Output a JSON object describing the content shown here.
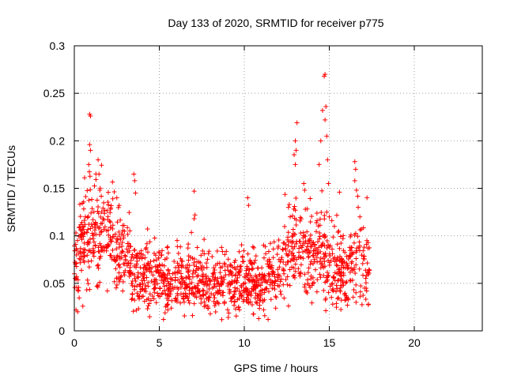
{
  "chart_data": {
    "type": "scatter",
    "title": "Day 133 of 2020, SRMTID for receiver p775",
    "xlabel": "GPS time / hours",
    "ylabel": "SRMTID / TECUs",
    "xlim": [
      0,
      24
    ],
    "ylim": [
      0,
      0.3
    ],
    "grid": true,
    "marker": "+",
    "color": "#ff0000",
    "x_ticks": [
      {
        "value": 0,
        "label": "0"
      },
      {
        "value": 5,
        "label": "5"
      },
      {
        "value": 10,
        "label": "10"
      },
      {
        "value": 15,
        "label": "15"
      },
      {
        "value": 20,
        "label": "20"
      }
    ],
    "y_ticks": [
      {
        "value": 0,
        "label": "0"
      },
      {
        "value": 0.05,
        "label": "0.05"
      },
      {
        "value": 0.1,
        "label": "0.1"
      },
      {
        "value": 0.15,
        "label": "0.15"
      },
      {
        "value": 0.2,
        "label": "0.2"
      },
      {
        "value": 0.25,
        "label": "0.25"
      },
      {
        "value": 0.3,
        "label": "0.3"
      }
    ],
    "data_range": {
      "x_start": 0.0,
      "x_end": 17.4
    },
    "envelope": [
      [
        0.0,
        0.06,
        0.025
      ],
      [
        0.5,
        0.095,
        0.03
      ],
      [
        1.0,
        0.1,
        0.03
      ],
      [
        1.5,
        0.11,
        0.032
      ],
      [
        2.0,
        0.1,
        0.03
      ],
      [
        2.5,
        0.085,
        0.028
      ],
      [
        3.0,
        0.075,
        0.026
      ],
      [
        3.5,
        0.065,
        0.024
      ],
      [
        4.0,
        0.058,
        0.022
      ],
      [
        5.0,
        0.052,
        0.02
      ],
      [
        6.0,
        0.05,
        0.019
      ],
      [
        7.0,
        0.052,
        0.02
      ],
      [
        8.0,
        0.05,
        0.019
      ],
      [
        9.0,
        0.048,
        0.019
      ],
      [
        10.0,
        0.05,
        0.02
      ],
      [
        11.0,
        0.045,
        0.018
      ],
      [
        12.0,
        0.065,
        0.024
      ],
      [
        12.5,
        0.085,
        0.028
      ],
      [
        13.0,
        0.09,
        0.03
      ],
      [
        13.5,
        0.08,
        0.028
      ],
      [
        14.0,
        0.075,
        0.026
      ],
      [
        14.5,
        0.09,
        0.03
      ],
      [
        15.0,
        0.07,
        0.026
      ],
      [
        15.5,
        0.055,
        0.022
      ],
      [
        16.0,
        0.06,
        0.022
      ],
      [
        16.5,
        0.07,
        0.026
      ],
      [
        17.0,
        0.068,
        0.024
      ],
      [
        17.4,
        0.065,
        0.022
      ]
    ],
    "highlights": [
      {
        "x": 0.9,
        "y": 0.228
      },
      {
        "x": 0.95,
        "y": 0.226
      },
      {
        "x": 0.9,
        "y": 0.196
      },
      {
        "x": 0.95,
        "y": 0.19
      },
      {
        "x": 0.85,
        "y": 0.175
      },
      {
        "x": 1.4,
        "y": 0.18
      },
      {
        "x": 1.45,
        "y": 0.165
      },
      {
        "x": 1.5,
        "y": 0.148
      },
      {
        "x": 2.5,
        "y": 0.14
      },
      {
        "x": 3.5,
        "y": 0.165
      },
      {
        "x": 3.55,
        "y": 0.158
      },
      {
        "x": 3.6,
        "y": 0.145
      },
      {
        "x": 7.05,
        "y": 0.147
      },
      {
        "x": 7.1,
        "y": 0.122
      },
      {
        "x": 7.05,
        "y": 0.118
      },
      {
        "x": 10.2,
        "y": 0.14
      },
      {
        "x": 10.25,
        "y": 0.132
      },
      {
        "x": 12.6,
        "y": 0.13
      },
      {
        "x": 12.7,
        "y": 0.12
      },
      {
        "x": 13.0,
        "y": 0.175
      },
      {
        "x": 13.05,
        "y": 0.19
      },
      {
        "x": 13.1,
        "y": 0.219
      },
      {
        "x": 13.0,
        "y": 0.2
      },
      {
        "x": 13.5,
        "y": 0.155
      },
      {
        "x": 13.55,
        "y": 0.148
      },
      {
        "x": 14.4,
        "y": 0.175
      },
      {
        "x": 14.5,
        "y": 0.2
      },
      {
        "x": 14.6,
        "y": 0.232
      },
      {
        "x": 14.7,
        "y": 0.268
      },
      {
        "x": 14.75,
        "y": 0.27
      },
      {
        "x": 14.8,
        "y": 0.236
      },
      {
        "x": 14.75,
        "y": 0.222
      },
      {
        "x": 14.85,
        "y": 0.205
      },
      {
        "x": 14.9,
        "y": 0.18
      },
      {
        "x": 14.95,
        "y": 0.155
      },
      {
        "x": 14.85,
        "y": 0.125
      },
      {
        "x": 15.0,
        "y": 0.12
      },
      {
        "x": 15.3,
        "y": 0.11
      },
      {
        "x": 15.6,
        "y": 0.146
      },
      {
        "x": 16.5,
        "y": 0.178
      },
      {
        "x": 16.55,
        "y": 0.17
      },
      {
        "x": 16.5,
        "y": 0.158
      },
      {
        "x": 16.6,
        "y": 0.148
      },
      {
        "x": 16.7,
        "y": 0.13
      },
      {
        "x": 16.8,
        "y": 0.12
      },
      {
        "x": 0.2,
        "y": 0.02
      },
      {
        "x": 0.1,
        "y": 0.022
      },
      {
        "x": 0.5,
        "y": 0.026
      },
      {
        "x": 8.0,
        "y": 0.018
      },
      {
        "x": 11.4,
        "y": 0.012
      },
      {
        "x": 11.2,
        "y": 0.016
      },
      {
        "x": 17.3,
        "y": 0.028
      },
      {
        "x": 17.2,
        "y": 0.042
      },
      {
        "x": 15.2,
        "y": 0.028
      }
    ],
    "point_count": 1500,
    "seed": 133
  }
}
